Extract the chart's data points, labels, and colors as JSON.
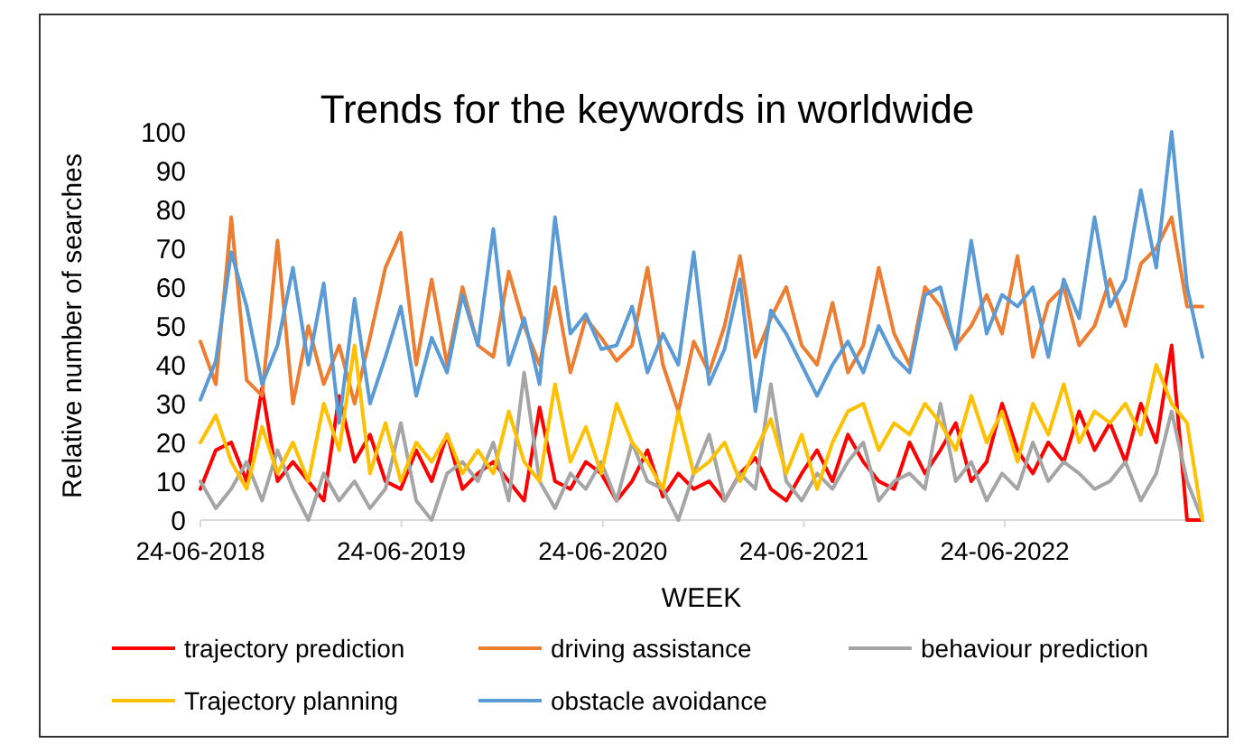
{
  "chart_data": {
    "type": "line",
    "title": "Trends for the keywords in worldwide",
    "xlabel": "WEEK",
    "ylabel": "Relative number of searches",
    "x": [
      "2018-06-24",
      "2018-07-22",
      "2018-08-19",
      "2018-09-16",
      "2018-10-14",
      "2018-11-11",
      "2018-12-09",
      "2019-01-06",
      "2019-02-03",
      "2019-03-03",
      "2019-03-31",
      "2019-04-28",
      "2019-05-26",
      "2019-06-23",
      "2019-07-21",
      "2019-08-18",
      "2019-09-15",
      "2019-10-13",
      "2019-11-10",
      "2019-12-08",
      "2020-01-05",
      "2020-02-02",
      "2020-03-01",
      "2020-03-29",
      "2020-04-26",
      "2020-05-24",
      "2020-06-21",
      "2020-07-19",
      "2020-08-16",
      "2020-09-13",
      "2020-10-11",
      "2020-11-08",
      "2020-12-06",
      "2021-01-03",
      "2021-01-31",
      "2021-02-28",
      "2021-03-28",
      "2021-04-25",
      "2021-05-23",
      "2021-06-20",
      "2021-07-18",
      "2021-08-15",
      "2021-09-12",
      "2021-10-10",
      "2021-11-07",
      "2021-12-05",
      "2022-01-02",
      "2022-01-30",
      "2022-02-27",
      "2022-03-27",
      "2022-04-24",
      "2022-05-22",
      "2022-06-19",
      "2022-07-17",
      "2022-08-14",
      "2022-09-11",
      "2022-10-09",
      "2022-11-06",
      "2022-12-04",
      "2023-01-01",
      "2023-01-29",
      "2023-02-26",
      "2023-03-26",
      "2023-04-23",
      "2023-05-21",
      "2023-06-18"
    ],
    "series": [
      {
        "name": "trajectory prediction",
        "color": "#ff0000",
        "values": [
          8,
          18,
          20,
          10,
          34,
          10,
          15,
          10,
          5,
          32,
          15,
          22,
          10,
          8,
          18,
          10,
          22,
          8,
          12,
          15,
          10,
          5,
          29,
          10,
          8,
          15,
          12,
          5,
          10,
          18,
          6,
          12,
          8,
          10,
          5,
          12,
          16,
          8,
          5,
          12,
          18,
          10,
          22,
          15,
          10,
          8,
          20,
          12,
          18,
          25,
          10,
          15,
          30,
          18,
          12,
          20,
          15,
          28,
          18,
          25,
          15,
          30,
          20,
          45,
          0,
          0
        ]
      },
      {
        "name": "driving assistance",
        "color": "#ed7d31",
        "values": [
          46,
          35,
          78,
          36,
          32,
          72,
          30,
          50,
          35,
          45,
          30,
          47,
          65,
          74,
          40,
          62,
          40,
          60,
          45,
          42,
          64,
          50,
          40,
          60,
          38,
          52,
          47,
          41,
          45,
          65,
          40,
          28,
          46,
          38,
          50,
          68,
          42,
          52,
          60,
          45,
          40,
          56,
          38,
          45,
          65,
          48,
          40,
          60,
          55,
          45,
          50,
          58,
          48,
          68,
          42,
          56,
          60,
          45,
          50,
          62,
          50,
          66,
          70,
          78,
          55,
          55
        ]
      },
      {
        "name": "behaviour prediction",
        "color": "#a5a5a5",
        "values": [
          10,
          3,
          8,
          15,
          5,
          18,
          8,
          0,
          12,
          5,
          10,
          3,
          8,
          25,
          5,
          0,
          12,
          15,
          10,
          20,
          5,
          38,
          10,
          3,
          12,
          8,
          15,
          5,
          20,
          10,
          8,
          0,
          12,
          22,
          5,
          12,
          8,
          35,
          10,
          5,
          12,
          8,
          15,
          20,
          5,
          10,
          12,
          8,
          30,
          10,
          15,
          5,
          12,
          8,
          20,
          10,
          15,
          12,
          8,
          10,
          15,
          5,
          12,
          28,
          10,
          0
        ]
      },
      {
        "name": "Trajectory planning",
        "color": "#ffc000",
        "values": [
          20,
          27,
          15,
          8,
          24,
          12,
          20,
          10,
          30,
          18,
          45,
          12,
          25,
          10,
          20,
          15,
          22,
          12,
          18,
          12,
          28,
          15,
          10,
          35,
          15,
          24,
          12,
          30,
          20,
          15,
          8,
          28,
          12,
          15,
          20,
          10,
          18,
          26,
          12,
          22,
          8,
          20,
          28,
          30,
          18,
          25,
          22,
          30,
          25,
          18,
          32,
          20,
          28,
          15,
          30,
          22,
          35,
          20,
          28,
          25,
          30,
          22,
          40,
          30,
          25,
          0
        ]
      },
      {
        "name": "obstacle avoidance",
        "color": "#5b9bd5",
        "values": [
          31,
          41,
          69,
          55,
          35,
          45,
          65,
          40,
          61,
          25,
          57,
          30,
          42,
          55,
          32,
          47,
          38,
          58,
          45,
          75,
          40,
          52,
          35,
          78,
          48,
          53,
          44,
          45,
          55,
          38,
          48,
          40,
          69,
          35,
          44,
          62,
          28,
          54,
          48,
          40,
          32,
          40,
          46,
          38,
          50,
          42,
          38,
          58,
          60,
          44,
          72,
          48,
          58,
          55,
          60,
          42,
          62,
          52,
          78,
          55,
          62,
          85,
          65,
          100,
          60,
          42
        ]
      }
    ],
    "xlim": [
      "2018-06-24",
      "2023-06-18"
    ],
    "xticks": [
      {
        "value": "2018-06-24",
        "label": "24-06-2018"
      },
      {
        "value": "2019-06-24",
        "label": "24-06-2019"
      },
      {
        "value": "2020-06-24",
        "label": "24-06-2020"
      },
      {
        "value": "2021-06-24",
        "label": "24-06-2021"
      },
      {
        "value": "2022-06-24",
        "label": "24-06-2022"
      }
    ],
    "ylim": [
      0,
      100
    ],
    "yticks": [
      0,
      10,
      20,
      30,
      40,
      50,
      60,
      70,
      80,
      90,
      100
    ],
    "grid": false,
    "legend": "bottom",
    "marker": "none",
    "line_style": "solid"
  }
}
